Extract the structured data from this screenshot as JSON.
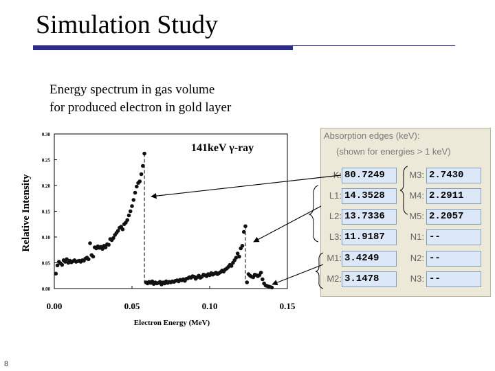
{
  "slide": {
    "title": "Simulation Study",
    "subtitle_line1": "Energy spectrum in gas volume",
    "subtitle_line2": "for produced electron in gold layer",
    "page_number": "8",
    "accent_color": "#2b2b8c"
  },
  "chart_data": {
    "type": "scatter",
    "annotation": "141keV γ-ray",
    "xlabel": "Electron Energy (MeV)",
    "ylabel": "Relative Intensity",
    "xlim": [
      0.0,
      0.15
    ],
    "ylim": [
      0.0,
      0.3
    ],
    "x_ticks": [
      "0.00",
      "0.05",
      "0.10",
      "0.15"
    ],
    "y_ticks": [
      "0.00",
      "0.05",
      "0.10",
      "0.15",
      "0.20",
      "0.25",
      "0.30"
    ],
    "series": [
      {
        "name": "spectrum",
        "x": [
          0.001,
          0.002,
          0.003,
          0.004,
          0.005,
          0.006,
          0.007,
          0.008,
          0.009,
          0.01,
          0.011,
          0.012,
          0.013,
          0.014,
          0.015,
          0.016,
          0.017,
          0.018,
          0.019,
          0.02,
          0.021,
          0.022,
          0.023,
          0.024,
          0.025,
          0.026,
          0.027,
          0.028,
          0.029,
          0.03,
          0.031,
          0.032,
          0.033,
          0.034,
          0.035,
          0.036,
          0.037,
          0.038,
          0.039,
          0.04,
          0.041,
          0.042,
          0.043,
          0.044,
          0.045,
          0.046,
          0.047,
          0.048,
          0.049,
          0.05,
          0.051,
          0.052,
          0.053,
          0.054,
          0.055,
          0.056,
          0.057,
          0.058,
          0.059,
          0.06,
          0.061,
          0.062,
          0.063,
          0.064,
          0.065,
          0.066,
          0.067,
          0.068,
          0.069,
          0.07,
          0.071,
          0.072,
          0.073,
          0.074,
          0.075,
          0.076,
          0.077,
          0.078,
          0.079,
          0.08,
          0.081,
          0.082,
          0.083,
          0.084,
          0.085,
          0.086,
          0.087,
          0.088,
          0.089,
          0.09,
          0.091,
          0.092,
          0.093,
          0.094,
          0.095,
          0.096,
          0.097,
          0.098,
          0.099,
          0.1,
          0.101,
          0.102,
          0.103,
          0.104,
          0.105,
          0.106,
          0.107,
          0.108,
          0.109,
          0.11,
          0.111,
          0.112,
          0.113,
          0.114,
          0.115,
          0.116,
          0.117,
          0.118,
          0.119,
          0.12,
          0.121,
          0.122,
          0.123,
          0.124,
          0.125,
          0.126,
          0.127,
          0.128,
          0.129,
          0.13,
          0.131,
          0.132,
          0.133,
          0.134,
          0.135,
          0.136,
          0.137,
          0.138,
          0.139,
          0.14
        ],
        "y": [
          0.029,
          0.045,
          0.052,
          0.049,
          0.046,
          0.055,
          0.052,
          0.057,
          0.05,
          0.054,
          0.051,
          0.053,
          0.055,
          0.052,
          0.053,
          0.054,
          0.052,
          0.055,
          0.054,
          0.058,
          0.06,
          0.057,
          0.088,
          0.065,
          0.062,
          0.08,
          0.078,
          0.082,
          0.079,
          0.081,
          0.077,
          0.083,
          0.08,
          0.086,
          0.085,
          0.096,
          0.094,
          0.098,
          0.104,
          0.108,
          0.112,
          0.118,
          0.12,
          0.115,
          0.125,
          0.128,
          0.133,
          0.142,
          0.15,
          0.16,
          0.172,
          0.186,
          0.198,
          0.205,
          0.208,
          0.222,
          0.238,
          0.262,
          0.012,
          0.01,
          0.013,
          0.011,
          0.014,
          0.009,
          0.012,
          0.01,
          0.011,
          0.013,
          0.008,
          0.012,
          0.01,
          0.014,
          0.011,
          0.013,
          0.012,
          0.014,
          0.013,
          0.015,
          0.016,
          0.014,
          0.017,
          0.016,
          0.018,
          0.015,
          0.019,
          0.02,
          0.022,
          0.021,
          0.024,
          0.023,
          0.019,
          0.022,
          0.025,
          0.021,
          0.023,
          0.027,
          0.026,
          0.024,
          0.028,
          0.026,
          0.03,
          0.027,
          0.029,
          0.031,
          0.028,
          0.03,
          0.032,
          0.035,
          0.033,
          0.037,
          0.039,
          0.042,
          0.046,
          0.044,
          0.05,
          0.055,
          0.06,
          0.068,
          0.062,
          0.078,
          0.083,
          0.11,
          0.121,
          0.012,
          0.028,
          0.025,
          0.023,
          0.022,
          0.027,
          0.026,
          0.024,
          0.026,
          0.031,
          0.018,
          0.01,
          0.006,
          0.005,
          0.004,
          0.003,
          0.002
        ]
      }
    ]
  },
  "edges_panel": {
    "title": "Absorption edges (keV):",
    "subtitle": "(shown for energies > 1 keV)",
    "rows": [
      {
        "l1": "K:",
        "v1": "80.7249",
        "l2": "M3:",
        "v2": "2.7430"
      },
      {
        "l1": "L1:",
        "v1": "14.3528",
        "l2": "M4:",
        "v2": "2.2911"
      },
      {
        "l1": "L2:",
        "v1": "13.7336",
        "l2": "M5:",
        "v2": "2.2057"
      },
      {
        "l1": "L3:",
        "v1": "11.9187",
        "l2": "N1:",
        "v2": "--"
      },
      {
        "l1": "M1:",
        "v1": "3.4249",
        "l2": "N2:",
        "v2": "--"
      },
      {
        "l1": "M2:",
        "v1": "3.1478",
        "l2": "N3:",
        "v2": "--"
      }
    ]
  }
}
